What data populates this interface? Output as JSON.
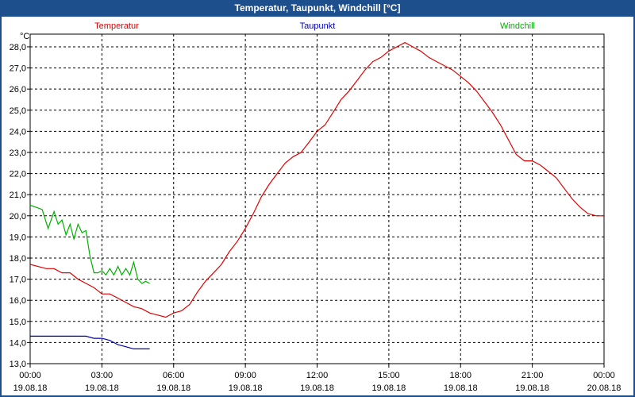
{
  "window": {
    "title": "Temperatur, Taupunkt, Windchill [°C]"
  },
  "chart_data": {
    "type": "line",
    "title": "Temperatur, Taupunkt, Windchill [°C]",
    "ylabel": "°C",
    "ylim": [
      13.0,
      28.6
    ],
    "xlim": [
      0,
      24
    ],
    "grid": true,
    "y_ticks": [
      "28,0",
      "27,0",
      "26,0",
      "25,0",
      "24,0",
      "23,0",
      "22,0",
      "21,0",
      "20,0",
      "19,0",
      "18,0",
      "17,0",
      "16,0",
      "15,0",
      "14,0",
      "13,0"
    ],
    "x_ticks": [
      {
        "time": "00:00",
        "date": "19.08.18"
      },
      {
        "time": "03:00",
        "date": "19.08.18"
      },
      {
        "time": "06:00",
        "date": "19.08.18"
      },
      {
        "time": "09:00",
        "date": "19.08.18"
      },
      {
        "time": "12:00",
        "date": "19.08.18"
      },
      {
        "time": "15:00",
        "date": "19.08.18"
      },
      {
        "time": "18:00",
        "date": "19.08.18"
      },
      {
        "time": "21:00",
        "date": "19.08.18"
      },
      {
        "time": "00:00",
        "date": "20.08.18"
      }
    ],
    "series": [
      {
        "name": "Temperatur",
        "color": "#e00000",
        "x": [
          0,
          0.33,
          0.67,
          1,
          1.33,
          1.67,
          2,
          2.33,
          2.67,
          3,
          3.33,
          3.67,
          4,
          4.33,
          4.67,
          5,
          5.33,
          5.67,
          6,
          6.33,
          6.67,
          7,
          7.33,
          7.67,
          8,
          8.33,
          8.67,
          9,
          9.33,
          9.67,
          10,
          10.33,
          10.67,
          11,
          11.33,
          11.67,
          12,
          12.33,
          12.67,
          13,
          13.33,
          13.67,
          14,
          14.33,
          14.67,
          15,
          15.33,
          15.67,
          16,
          16.33,
          16.67,
          17,
          17.33,
          17.67,
          18,
          18.33,
          18.67,
          19,
          19.33,
          19.67,
          20,
          20.33,
          20.67,
          21,
          21.33,
          21.67,
          22,
          22.33,
          22.67,
          23,
          23.33,
          23.67,
          24
        ],
        "values": [
          17.7,
          17.6,
          17.5,
          17.5,
          17.3,
          17.3,
          17.0,
          16.8,
          16.6,
          16.3,
          16.3,
          16.1,
          15.9,
          15.7,
          15.6,
          15.4,
          15.3,
          15.2,
          15.4,
          15.5,
          15.8,
          16.4,
          16.9,
          17.3,
          17.7,
          18.3,
          18.8,
          19.4,
          20.1,
          20.9,
          21.5,
          22.0,
          22.5,
          22.8,
          23.0,
          23.5,
          24.0,
          24.3,
          24.9,
          25.5,
          25.9,
          26.4,
          26.9,
          27.3,
          27.5,
          27.8,
          28.0,
          28.2,
          28.0,
          27.8,
          27.5,
          27.3,
          27.1,
          26.9,
          26.6,
          26.3,
          25.9,
          25.4,
          24.9,
          24.3,
          23.6,
          22.9,
          22.6,
          22.6,
          22.4,
          22.1,
          21.8,
          21.3,
          20.8,
          20.4,
          20.1,
          20.0,
          20.0
        ]
      },
      {
        "name": "Taupunkt",
        "color": "#0000b0",
        "x": [
          0,
          0.33,
          0.67,
          1,
          1.33,
          1.67,
          2,
          2.33,
          2.67,
          3,
          3.33,
          3.67,
          4,
          4.33,
          4.67,
          5
        ],
        "values": [
          14.3,
          14.3,
          14.3,
          14.3,
          14.3,
          14.3,
          14.3,
          14.3,
          14.2,
          14.2,
          14.1,
          13.9,
          13.8,
          13.7,
          13.7,
          13.7
        ]
      },
      {
        "name": "Windchill",
        "color": "#00b000",
        "x": [
          0,
          0.25,
          0.5,
          0.75,
          1,
          1.17,
          1.33,
          1.5,
          1.67,
          1.83,
          2,
          2.17,
          2.33,
          2.5,
          2.67,
          2.83,
          3,
          3.17,
          3.33,
          3.5,
          3.67,
          3.83,
          4,
          4.17,
          4.33,
          4.5,
          4.67,
          4.83,
          5
        ],
        "values": [
          20.5,
          20.4,
          20.3,
          19.4,
          20.2,
          19.6,
          19.8,
          19.1,
          19.6,
          18.9,
          19.6,
          19.2,
          19.3,
          18.1,
          17.3,
          17.3,
          17.4,
          17.2,
          17.5,
          17.2,
          17.6,
          17.2,
          17.5,
          17.2,
          17.8,
          17.0,
          16.8,
          16.9,
          16.8
        ]
      }
    ]
  }
}
